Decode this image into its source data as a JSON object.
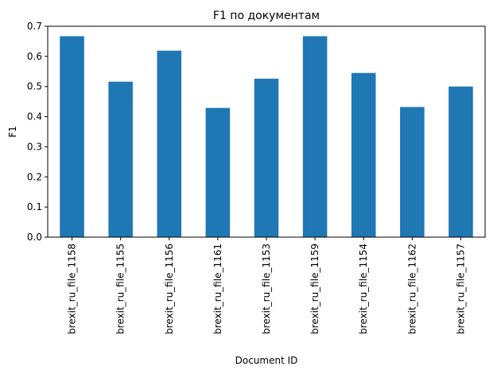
{
  "chart_data": {
    "type": "bar",
    "title": "F1 по документам",
    "xlabel": "Document ID",
    "ylabel": "F1",
    "categories": [
      "brexit_ru_file_1158",
      "brexit_ru_file_1155",
      "brexit_ru_file_1156",
      "brexit_ru_file_1161",
      "brexit_ru_file_1153",
      "brexit_ru_file_1159",
      "brexit_ru_file_1154",
      "brexit_ru_file_1162",
      "brexit_ru_file_1157"
    ],
    "values": [
      0.667,
      0.516,
      0.619,
      0.429,
      0.526,
      0.667,
      0.545,
      0.432,
      0.5
    ],
    "ylim": [
      0,
      0.7
    ],
    "yticks": [
      "0.0",
      "0.1",
      "0.2",
      "0.3",
      "0.4",
      "0.5",
      "0.6",
      "0.7"
    ],
    "bar_color": "#1f77b4",
    "grid": false,
    "legend": "none"
  }
}
